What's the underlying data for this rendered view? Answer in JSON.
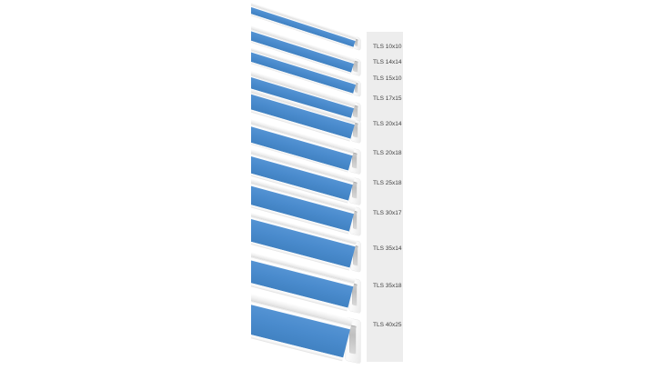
{
  "colors": {
    "tape_blue": "#4a8bcd",
    "trunking_white": "#fdfdfd",
    "panel_gray": "#ededed",
    "label_text": "#404040",
    "background": "#ffffff"
  },
  "products": [
    {
      "label": "TLS 10x10",
      "size": "10x10"
    },
    {
      "label": "TLS 14x14",
      "size": "14x14"
    },
    {
      "label": "TLS 15x10",
      "size": "15x10"
    },
    {
      "label": "TLS 17x15",
      "size": "17x15"
    },
    {
      "label": "TLS 20x14",
      "size": "20x14"
    },
    {
      "label": "TLS 20x18",
      "size": "20x18"
    },
    {
      "label": "TLS 25x18",
      "size": "25x18"
    },
    {
      "label": "TLS 30x17",
      "size": "30x17"
    },
    {
      "label": "TLS 35x14",
      "size": "35x14"
    },
    {
      "label": "TLS 35x18",
      "size": "35x18"
    },
    {
      "label": "TLS 40x25",
      "size": "40x25"
    }
  ]
}
